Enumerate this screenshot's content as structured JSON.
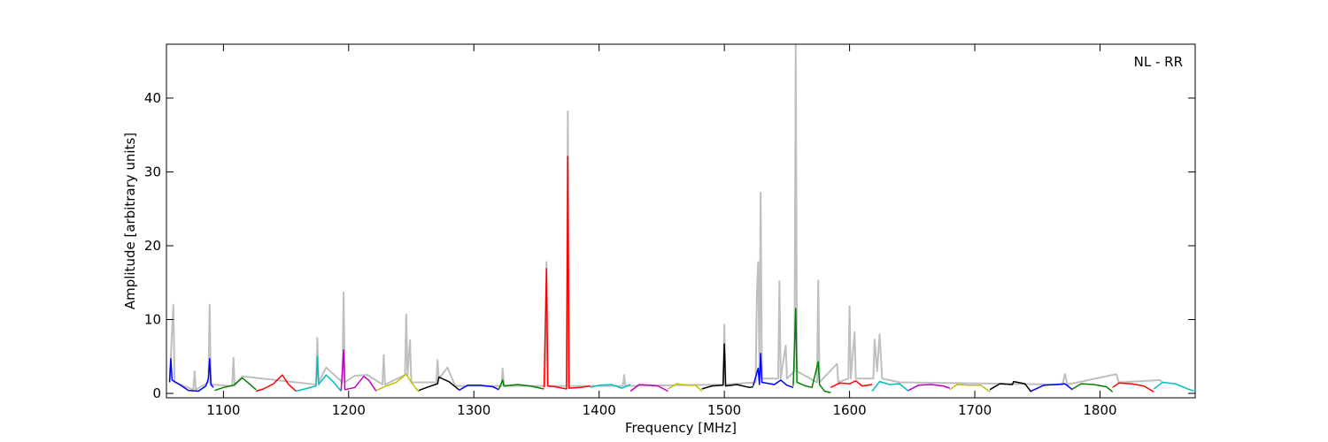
{
  "chart_data": {
    "type": "line",
    "xlabel": "Frequency [MHz]",
    "ylabel": "Amplitude [arbitrary units]",
    "annotation": "NL - RR",
    "xlim": [
      1054.5,
      1876
    ],
    "ylim": [
      -0.6,
      47.3
    ],
    "xticks": [
      1100,
      1200,
      1300,
      1400,
      1500,
      1600,
      1700,
      1800
    ],
    "yticks": [
      0,
      10,
      20,
      30,
      40
    ],
    "series": [
      {
        "color": "#bfbfbf",
        "x": [
          1057,
          1060,
          1061,
          1076,
          1077,
          1078,
          1088,
          1089,
          1090,
          1107,
          1108,
          1109,
          1115,
          1174,
          1175,
          1176,
          1182,
          1195,
          1196,
          1197,
          1205,
          1215,
          1227,
          1228,
          1229,
          1245,
          1246,
          1247,
          1249,
          1250,
          1270,
          1271,
          1272,
          1279,
          1285,
          1322,
          1323,
          1324,
          1357,
          1358,
          1359,
          1374,
          1375,
          1376,
          1419,
          1420,
          1421,
          1499,
          1500,
          1501,
          1525,
          1526,
          1527,
          1528,
          1529,
          1530,
          1543,
          1544,
          1545,
          1549,
          1550,
          1556,
          1557,
          1558,
          1574,
          1575,
          1576,
          1590,
          1591,
          1599,
          1600,
          1601,
          1604,
          1605,
          1619,
          1620,
          1622,
          1624,
          1626,
          1640,
          1770,
          1772,
          1774,
          1813,
          1815,
          1848,
          1850
        ],
        "values": [
          1.5,
          12,
          1.5,
          0.5,
          3,
          0.5,
          1.5,
          12,
          1.2,
          1,
          4.8,
          1,
          2.3,
          1.2,
          7.5,
          1.5,
          3.5,
          1.5,
          13.7,
          1.5,
          2.4,
          2.5,
          1.2,
          5.2,
          1.2,
          2.5,
          10.7,
          2.5,
          7.2,
          1.5,
          1.5,
          4.5,
          2,
          3.5,
          1,
          1,
          3.4,
          1,
          1,
          17.8,
          1,
          1,
          38.2,
          1,
          1,
          2.5,
          1,
          1.2,
          9.3,
          1.2,
          1.5,
          13.6,
          17.8,
          3,
          27.2,
          2,
          2,
          15.2,
          2,
          6.5,
          2,
          3,
          47.3,
          3,
          1.5,
          15.3,
          1.5,
          4,
          1.5,
          2,
          11.8,
          2,
          8.3,
          2,
          2,
          7.3,
          3,
          8,
          2,
          1.5,
          1.2,
          2.6,
          1.2,
          2.6,
          1.5,
          1.8,
          1.4
        ]
      },
      {
        "color": "#0000ff",
        "x": [
          1057,
          1058,
          1059,
          1065,
          1072,
          1080,
          1086,
          1088,
          1089,
          1090,
          1092
        ],
        "values": [
          1.5,
          4.7,
          1.8,
          1.2,
          0.4,
          0.3,
          1,
          2,
          4.7,
          1.2,
          0.8
        ]
      },
      {
        "color": "#008000",
        "x": [
          1093,
          1100,
          1108,
          1115,
          1120,
          1126
        ],
        "values": [
          0.4,
          0.8,
          1.1,
          2.1,
          1.4,
          0.5
        ]
      },
      {
        "color": "#ff0000",
        "x": [
          1126,
          1132,
          1140,
          1147,
          1152,
          1158
        ],
        "values": [
          0.3,
          0.6,
          1.3,
          2.5,
          1.2,
          0.3
        ]
      },
      {
        "color": "#00bfbf",
        "x": [
          1158,
          1165,
          1174,
          1175,
          1176,
          1182,
          1188,
          1194
        ],
        "values": [
          0.3,
          0.6,
          1.0,
          5.0,
          1.2,
          2.5,
          1.5,
          0.3
        ]
      },
      {
        "color": "#bf00bf",
        "x": [
          1194,
          1196,
          1197,
          1205,
          1212,
          1216,
          1222
        ],
        "values": [
          0.4,
          5.9,
          0.5,
          0.8,
          2.3,
          1.8,
          0.3
        ]
      },
      {
        "color": "#bfbf00",
        "x": [
          1222,
          1230,
          1238,
          1246,
          1250,
          1256
        ],
        "values": [
          0.4,
          1.0,
          1.5,
          2.6,
          1.5,
          0.2
        ]
      },
      {
        "color": "#000000",
        "x": [
          1256,
          1264,
          1271,
          1272,
          1280,
          1288
        ],
        "values": [
          0.4,
          0.9,
          1.3,
          2.2,
          1.6,
          0.5
        ]
      },
      {
        "color": "#0000ff",
        "x": [
          1288,
          1295,
          1305,
          1315,
          1320
        ],
        "values": [
          0.4,
          1.1,
          1.1,
          0.9,
          0.5
        ]
      },
      {
        "color": "#008000",
        "x": [
          1320,
          1323,
          1324,
          1335,
          1345,
          1356
        ],
        "values": [
          0.6,
          1.8,
          1.0,
          1.2,
          1.0,
          0.6
        ]
      },
      {
        "color": "#ff0000",
        "x": [
          1356,
          1358,
          1359,
          1365,
          1374,
          1375,
          1376,
          1385,
          1393
        ],
        "values": [
          0.8,
          16.9,
          1.0,
          0.9,
          0.6,
          32.1,
          0.7,
          0.8,
          1.0
        ]
      },
      {
        "color": "#00bfbf",
        "x": [
          1393,
          1400,
          1410,
          1418,
          1425
        ],
        "values": [
          0.8,
          1.1,
          1.2,
          0.7,
          1.2
        ]
      },
      {
        "color": "#bf00bf",
        "x": [
          1425,
          1432,
          1440,
          1447,
          1455
        ],
        "values": [
          0.3,
          1.2,
          1.1,
          1.0,
          0.3
        ]
      },
      {
        "color": "#bfbf00",
        "x": [
          1455,
          1462,
          1470,
          1477,
          1482
        ],
        "values": [
          0.6,
          1.3,
          1.1,
          1.1,
          0.3
        ]
      },
      {
        "color": "#000000",
        "x": [
          1482,
          1490,
          1499,
          1500,
          1501,
          1510,
          1520,
          1523
        ],
        "values": [
          0.6,
          1.0,
          1.1,
          6.7,
          1.0,
          1.2,
          0.8,
          0.9
        ]
      },
      {
        "color": "#0000ff",
        "x": [
          1523,
          1527,
          1528,
          1529,
          1530,
          1540,
          1545,
          1550,
          1555
        ],
        "values": [
          1.0,
          3.4,
          1.2,
          5.4,
          1.5,
          1.2,
          1.8,
          1.1,
          0.8
        ]
      },
      {
        "color": "#008000",
        "x": [
          1555,
          1557,
          1558,
          1565,
          1570,
          1575,
          1576,
          1580,
          1585
        ],
        "values": [
          1.0,
          11.5,
          1.5,
          1.0,
          0.8,
          4.3,
          1.2,
          0.3,
          0.1
        ]
      },
      {
        "color": "#ff0000",
        "x": [
          1585,
          1592,
          1600,
          1605,
          1610,
          1618
        ],
        "values": [
          0.8,
          1.4,
          1.3,
          1.7,
          1.0,
          1.2
        ]
      },
      {
        "color": "#00bfbf",
        "x": [
          1618,
          1624,
          1632,
          1640,
          1647
        ],
        "values": [
          0.3,
          1.6,
          1.2,
          1.3,
          0.3
        ]
      },
      {
        "color": "#bf00bf",
        "x": [
          1647,
          1655,
          1665,
          1675,
          1680
        ],
        "values": [
          0.4,
          1.1,
          1.2,
          1.0,
          0.7
        ]
      },
      {
        "color": "#bfbf00",
        "x": [
          1680,
          1686,
          1695,
          1705,
          1712
        ],
        "values": [
          0.5,
          1.2,
          1.1,
          1.1,
          0.2
        ]
      },
      {
        "color": "#000000",
        "x": [
          1712,
          1720,
          1730,
          1731,
          1740,
          1745
        ],
        "values": [
          0.5,
          1.3,
          1.2,
          1.6,
          1.3,
          0.2
        ]
      },
      {
        "color": "#0000ff",
        "x": [
          1745,
          1755,
          1765,
          1772,
          1778
        ],
        "values": [
          0.3,
          1.1,
          1.2,
          1.3,
          0.5
        ]
      },
      {
        "color": "#008000",
        "x": [
          1778,
          1785,
          1795,
          1805,
          1810
        ],
        "values": [
          0.6,
          1.3,
          1.2,
          0.9,
          0.2
        ]
      },
      {
        "color": "#ff0000",
        "x": [
          1810,
          1815,
          1825,
          1835,
          1843
        ],
        "values": [
          0.8,
          1.4,
          1.3,
          1.0,
          0.2
        ]
      },
      {
        "color": "#00bfbf",
        "x": [
          1843,
          1850,
          1860,
          1870,
          1875
        ],
        "values": [
          0.6,
          1.5,
          1.3,
          0.6,
          0.3
        ]
      }
    ]
  }
}
